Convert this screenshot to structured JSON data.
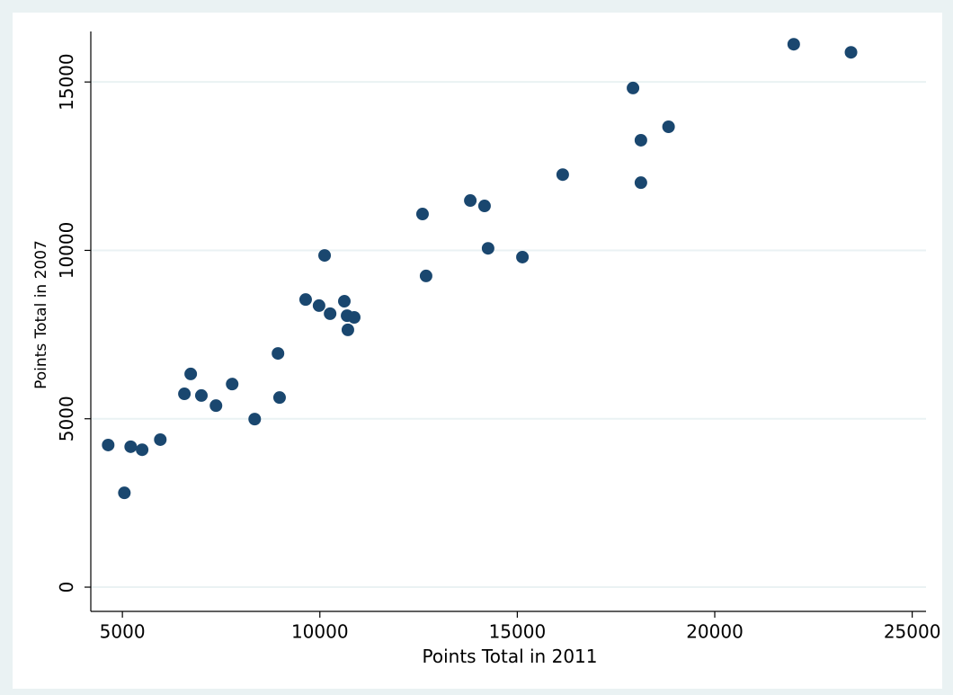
{
  "chart_data": {
    "type": "scatter",
    "x_label": "Points Total in 2011",
    "y_label": "Points Total in 2007",
    "xlim": [
      4200,
      25350
    ],
    "ylim": [
      -720,
      16500
    ],
    "xticks": [
      5000,
      10000,
      15000,
      20000,
      25000
    ],
    "yticks": [
      0,
      5000,
      10000,
      15000
    ],
    "grid": true,
    "color": "#1a476f",
    "x": [
      4640,
      5050,
      5210,
      5500,
      5960,
      6570,
      6730,
      7000,
      7370,
      7780,
      8350,
      8940,
      8980,
      9640,
      9980,
      10120,
      10260,
      10620,
      10690,
      10710,
      10870,
      12600,
      12690,
      13810,
      14170,
      14260,
      15130,
      16150,
      17930,
      18130,
      18130,
      18830,
      22000,
      23450
    ],
    "values": [
      4220,
      2800,
      4170,
      4080,
      4380,
      5740,
      6330,
      5690,
      5390,
      6030,
      4990,
      6940,
      5630,
      8540,
      8360,
      9850,
      8120,
      8490,
      8060,
      7640,
      8010,
      11080,
      9240,
      11480,
      11320,
      10060,
      9800,
      12250,
      14820,
      13270,
      12010,
      13670,
      16120,
      15880
    ]
  }
}
